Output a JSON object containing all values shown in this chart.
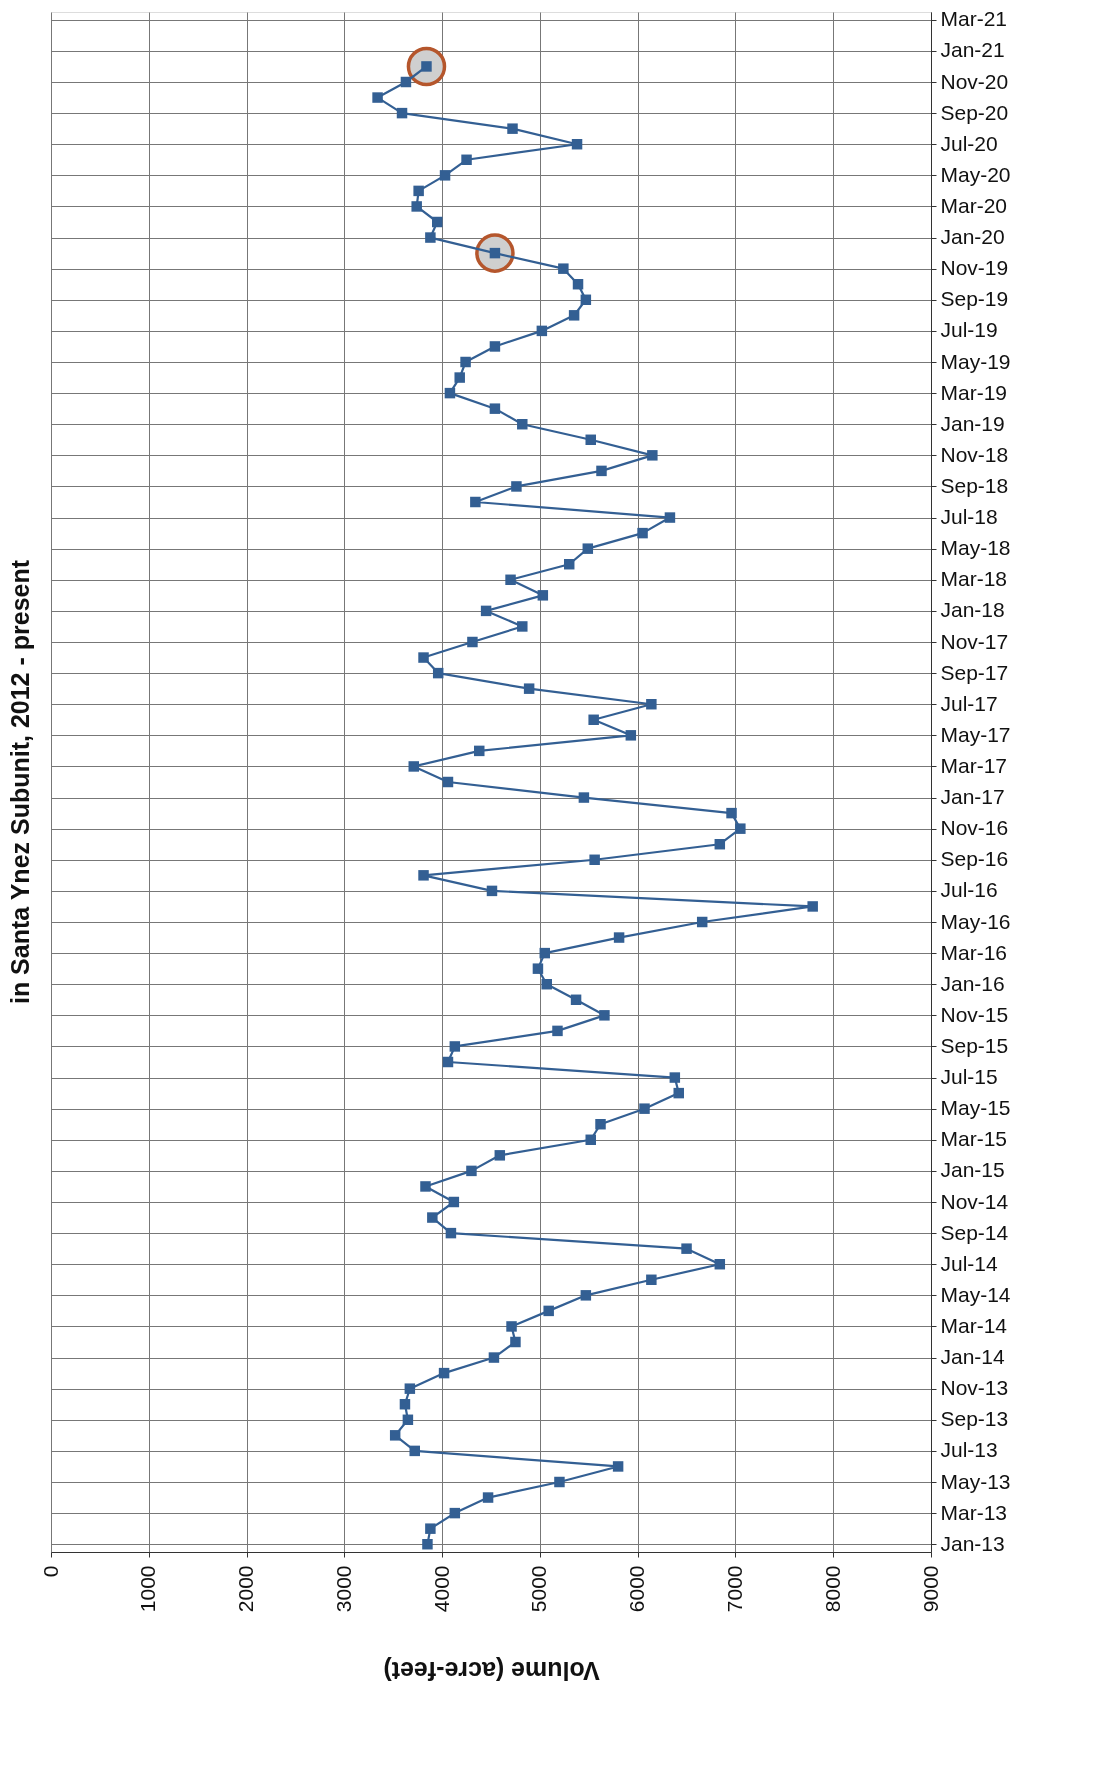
{
  "chart_data": {
    "type": "line",
    "orientation": "horizontal",
    "title": "in Santa Ynez Subunit, 2012 - present",
    "xlabel": "Volume (acre-feet)",
    "xlim": [
      0,
      9000
    ],
    "xticks": [
      0,
      1000,
      2000,
      3000,
      4000,
      5000,
      6000,
      7000,
      8000,
      9000
    ],
    "categories": [
      "Mar-21",
      null,
      "Jan-21",
      null,
      "Nov-20",
      null,
      "Sep-20",
      null,
      "Jul-20",
      null,
      "May-20",
      null,
      "Mar-20",
      null,
      "Jan-20",
      null,
      "Nov-19",
      null,
      "Sep-19",
      null,
      "Jul-19",
      null,
      "May-19",
      null,
      "Mar-19",
      null,
      "Jan-19",
      null,
      "Nov-18",
      null,
      "Sep-18",
      null,
      "Jul-18",
      null,
      "May-18",
      null,
      "Mar-18",
      null,
      "Jan-18",
      null,
      "Nov-17",
      null,
      "Sep-17",
      null,
      "Jul-17",
      null,
      "May-17",
      null,
      "Mar-17",
      null,
      "Jan-17",
      null,
      "Nov-16",
      null,
      "Sep-16",
      null,
      "Jul-16",
      null,
      "May-16",
      null,
      "Mar-16",
      null,
      "Jan-16",
      null,
      "Nov-15",
      null,
      "Sep-15",
      null,
      "Jul-15",
      null,
      "May-15",
      null,
      "Mar-15",
      null,
      "Jan-15",
      null,
      "Nov-14",
      null,
      "Sep-14",
      null,
      "Jul-14",
      null,
      "May-14",
      null,
      "Mar-14",
      null,
      "Jan-14",
      null,
      "Nov-13",
      null,
      "Sep-13",
      null,
      "Jul-13",
      null,
      "May-13",
      null,
      "Mar-13",
      null,
      "Jan-13"
    ],
    "grid": true,
    "series": [
      {
        "type": "scatter",
        "color": "#b5562c",
        "marker": "circle",
        "values": [
          null,
          null,
          null,
          3840,
          null,
          null,
          null,
          null,
          null,
          null,
          null,
          null,
          null,
          null,
          null,
          4540,
          null,
          null,
          null,
          null,
          null,
          null,
          null,
          null,
          null,
          null,
          null,
          null,
          null,
          null,
          null,
          null,
          null,
          null,
          null,
          null,
          null,
          null,
          null,
          null,
          null,
          null,
          null,
          null,
          null,
          null,
          null,
          null,
          null,
          null,
          null,
          null,
          null,
          null,
          null,
          null,
          null,
          null,
          null,
          null,
          null,
          null,
          null,
          null,
          null,
          null,
          null,
          null,
          null,
          null,
          null,
          null,
          null,
          null,
          null,
          null,
          null,
          null,
          null,
          null,
          null,
          null,
          null,
          null,
          null,
          null,
          null,
          null,
          null,
          null,
          null,
          null,
          null,
          null,
          null,
          null,
          null,
          null,
          null
        ]
      },
      {
        "color": "#335f93",
        "marker": "square",
        "values": [
          null,
          null,
          null,
          3840,
          3630,
          3340,
          3590,
          4720,
          5380,
          4250,
          4030,
          3760,
          3740,
          3950,
          3880,
          4540,
          5240,
          5390,
          5470,
          5350,
          5020,
          4540,
          4240,
          4180,
          4080,
          4540,
          4820,
          5520,
          6150,
          5630,
          4760,
          4340,
          6330,
          6050,
          5490,
          5300,
          4700,
          5030,
          4450,
          4820,
          4310,
          3810,
          3960,
          4890,
          6140,
          5550,
          5930,
          4380,
          3710,
          4060,
          5450,
          6960,
          7050,
          6840,
          5560,
          3810,
          4510,
          7790,
          6660,
          5810,
          5050,
          4980,
          5070,
          5370,
          5660,
          5180,
          4130,
          4060,
          6380,
          6420,
          6070,
          5620,
          5520,
          4590,
          4300,
          3830,
          4120,
          3900,
          4090,
          6500,
          6840,
          6140,
          5470,
          5090,
          4710,
          4750,
          4530,
          4020,
          3670,
          3620,
          3650,
          3520,
          3720,
          5800,
          5200,
          4470,
          4130,
          3880,
          3850
        ]
      }
    ]
  }
}
